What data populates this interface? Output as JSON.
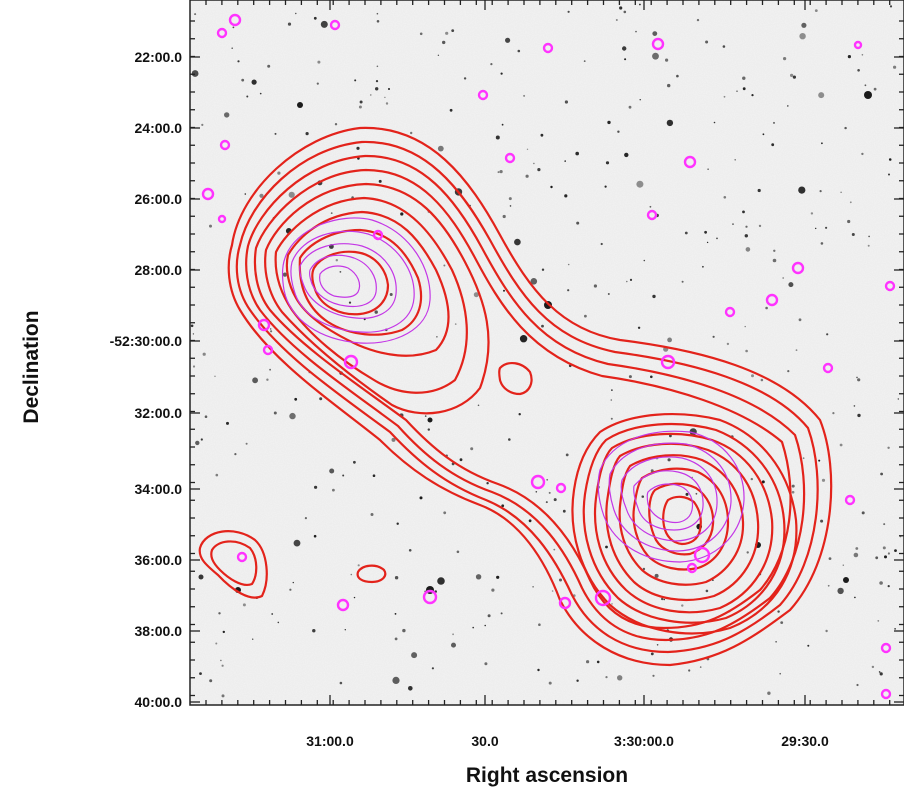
{
  "figure": {
    "y_axis_title": "Declination",
    "x_axis_title": "Right ascension",
    "y_ticks": [
      "22:00.0",
      "24:00.0",
      "26:00.0",
      "28:00.0",
      "-52:30:00.0",
      "32:00.0",
      "34:00.0",
      "36:00.0",
      "38:00.0",
      "40:00.0"
    ],
    "x_ticks": [
      "31:00.0",
      "30.0",
      "3:30:00.0",
      "29:30.0"
    ]
  },
  "colors": {
    "radio_contours": "#e3231b",
    "xray_contours": "#c437e6",
    "point_sources": "#ff33ff",
    "sky_background": "#f4f4f4"
  }
}
